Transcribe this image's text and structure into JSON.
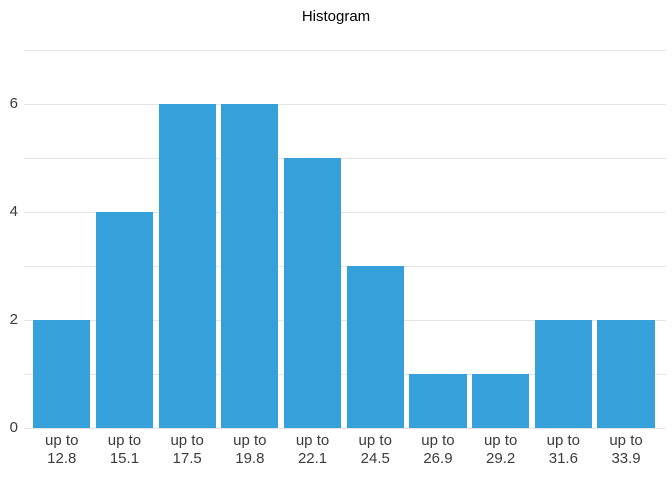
{
  "title": "Histogram",
  "chart_data": {
    "type": "bar",
    "title": "Histogram",
    "categories": [
      "up to 12.8",
      "up to 15.1",
      "up to 17.5",
      "up to 19.8",
      "up to 22.1",
      "up to 24.5",
      "up to 26.9",
      "up to 29.2",
      "up to 31.6",
      "up to 33.9"
    ],
    "category_prefix": "up to",
    "bin_uppers": [
      "12.8",
      "15.1",
      "17.5",
      "19.8",
      "22.1",
      "24.5",
      "26.9",
      "29.2",
      "31.6",
      "33.9"
    ],
    "values": [
      2,
      4,
      6,
      6,
      5,
      3,
      1,
      1,
      2,
      2
    ],
    "xlabel": "",
    "ylabel": "",
    "ylim": [
      0,
      7
    ],
    "ytick_step": 1,
    "ytick_labels": [
      "0",
      "2",
      "4",
      "6"
    ],
    "ytick_label_values": [
      0,
      2,
      4,
      6
    ],
    "grid": true,
    "legend": false,
    "bar_color": "#36a0db",
    "gridline_color": "#e4e4e4",
    "axis_text_color": "#3b3b3b",
    "title_color": "#000000"
  }
}
